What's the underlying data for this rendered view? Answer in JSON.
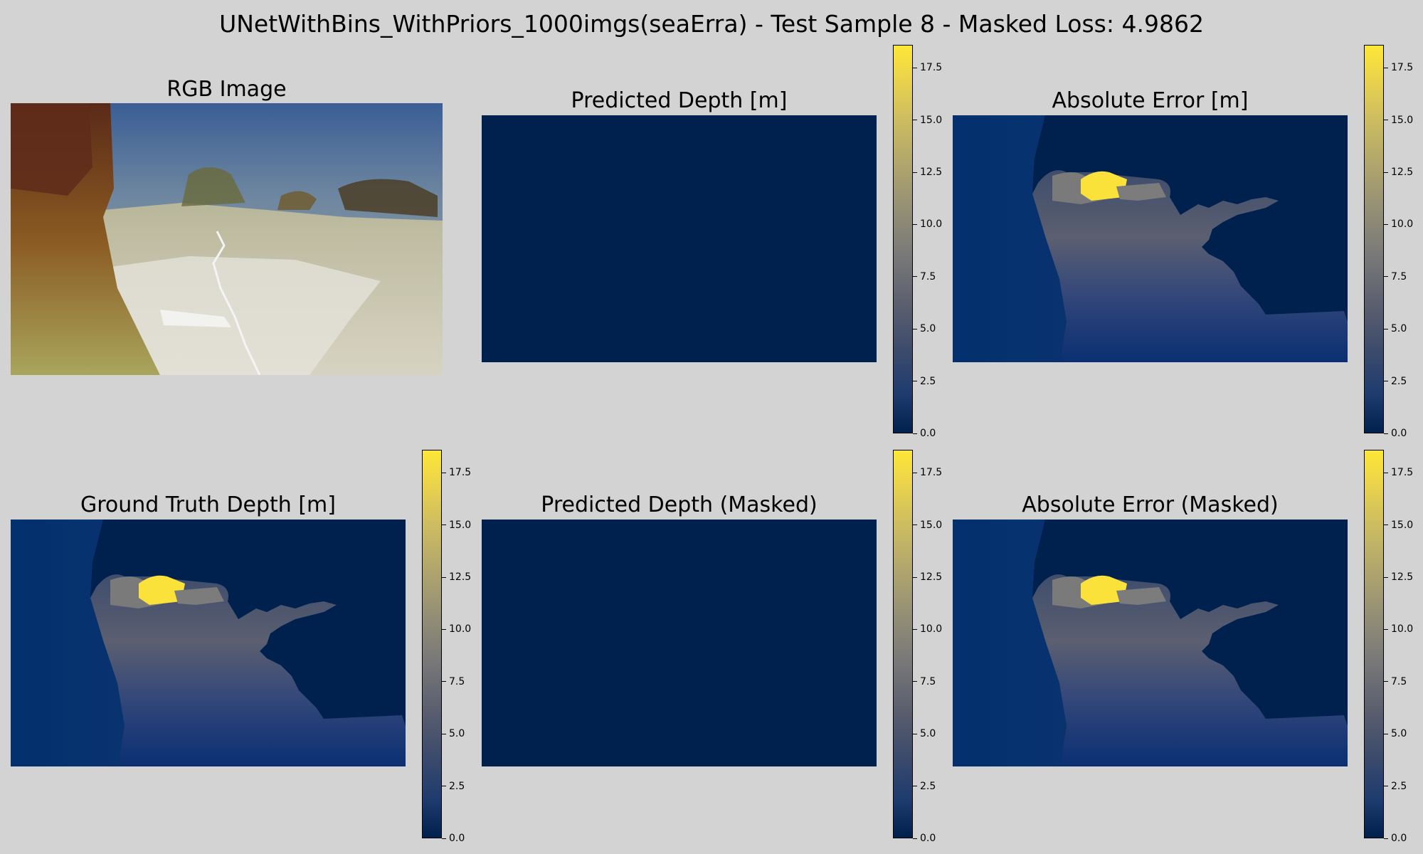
{
  "figure": {
    "suptitle": "UNetWithBins_WithPriors_1000imgs(seaErra) - Test Sample 8 - Masked Loss: 4.9862"
  },
  "panels": {
    "rgb": {
      "title": "RGB Image"
    },
    "pred": {
      "title": "Predicted Depth [m]"
    },
    "err": {
      "title": "Absolute Error [m]"
    },
    "gt": {
      "title": "Ground Truth Depth [m]"
    },
    "pred_masked": {
      "title": "Predicted Depth (Masked)"
    },
    "err_masked": {
      "title": "Absolute Error (Masked)"
    }
  },
  "colors": {
    "background": "#d3d3d3",
    "colormap": "cividis",
    "cmap_low": "#00204d",
    "cmap_high": "#fde737"
  },
  "chart_data": [
    {
      "type": "heatmap",
      "title": "RGB Image",
      "content": "underwater photograph"
    },
    {
      "type": "heatmap",
      "title": "Predicted Depth [m]",
      "colorbar": {
        "vmin": 0.0,
        "vmax": 18.6,
        "ticks": [
          0.0,
          2.5,
          5.0,
          7.5,
          10.0,
          12.5,
          15.0,
          17.5
        ],
        "tick_labels": [
          "0.0",
          "2.5",
          "5.0",
          "7.5",
          "10.0",
          "12.5",
          "15.0",
          "17.5"
        ]
      }
    },
    {
      "type": "heatmap",
      "title": "Absolute Error [m]",
      "colorbar": {
        "vmin": 0.0,
        "vmax": 18.6,
        "ticks": [
          0.0,
          2.5,
          5.0,
          7.5,
          10.0,
          12.5,
          15.0,
          17.5
        ],
        "tick_labels": [
          "0.0",
          "2.5",
          "5.0",
          "7.5",
          "10.0",
          "12.5",
          "15.0",
          "17.5"
        ]
      }
    },
    {
      "type": "heatmap",
      "title": "Ground Truth Depth [m]",
      "colorbar": {
        "vmin": 0.0,
        "vmax": 18.6,
        "ticks": [
          0.0,
          2.5,
          5.0,
          7.5,
          10.0,
          12.5,
          15.0,
          17.5
        ],
        "tick_labels": [
          "0.0",
          "2.5",
          "5.0",
          "7.5",
          "10.0",
          "12.5",
          "15.0",
          "17.5"
        ]
      }
    },
    {
      "type": "heatmap",
      "title": "Predicted Depth (Masked)",
      "colorbar": {
        "vmin": 0.0,
        "vmax": 18.6,
        "ticks": [
          0.0,
          2.5,
          5.0,
          7.5,
          10.0,
          12.5,
          15.0,
          17.5
        ],
        "tick_labels": [
          "0.0",
          "2.5",
          "5.0",
          "7.5",
          "10.0",
          "12.5",
          "15.0",
          "17.5"
        ]
      }
    },
    {
      "type": "heatmap",
      "title": "Absolute Error (Masked)",
      "colorbar": {
        "vmin": 0.0,
        "vmax": 18.6,
        "ticks": [
          0.0,
          2.5,
          5.0,
          7.5,
          10.0,
          12.5,
          15.0,
          17.5
        ],
        "tick_labels": [
          "0.0",
          "2.5",
          "5.0",
          "7.5",
          "10.0",
          "12.5",
          "15.0",
          "17.5"
        ]
      }
    }
  ]
}
